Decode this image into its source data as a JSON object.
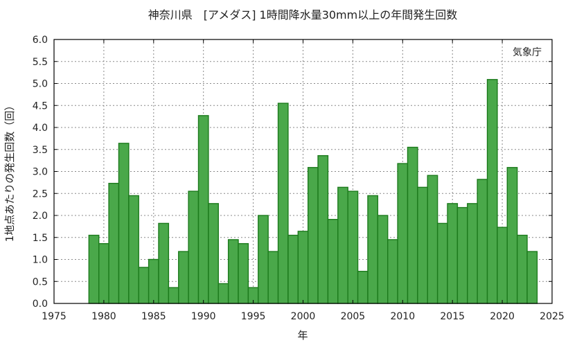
{
  "chart_data": {
    "type": "bar",
    "title": "神奈川県　[アメダス] 1時間降水量30mm以上の年間発生回数",
    "xlabel": "年",
    "ylabel": "1地点あたりの発生回数（回）",
    "annotation": "気象庁",
    "xlim": [
      1975,
      2025
    ],
    "ylim": [
      0,
      6
    ],
    "x_ticks": [
      1975,
      1980,
      1985,
      1990,
      1995,
      2000,
      2005,
      2010,
      2015,
      2020,
      2025
    ],
    "y_ticks": [
      "0.0",
      "0.5",
      "1.0",
      "1.5",
      "2.0",
      "2.5",
      "3.0",
      "3.5",
      "4.0",
      "4.5",
      "5.0",
      "5.5",
      "6.0"
    ],
    "grid": true,
    "bar_color": "#4aa84a",
    "bar_edge_color": "#1c7a1c",
    "categories": [
      1979,
      1980,
      1981,
      1982,
      1983,
      1984,
      1985,
      1986,
      1987,
      1988,
      1989,
      1990,
      1991,
      1992,
      1993,
      1994,
      1995,
      1996,
      1997,
      1998,
      1999,
      2000,
      2001,
      2002,
      2003,
      2004,
      2005,
      2006,
      2007,
      2008,
      2009,
      2010,
      2011,
      2012,
      2013,
      2014,
      2015,
      2016,
      2017,
      2018,
      2019,
      2020,
      2021,
      2022,
      2023
    ],
    "values": [
      1.55,
      1.36,
      2.73,
      3.64,
      2.45,
      0.82,
      1.0,
      1.82,
      0.36,
      1.18,
      2.55,
      4.27,
      2.27,
      0.45,
      1.45,
      1.36,
      0.36,
      2.0,
      1.18,
      4.55,
      1.55,
      1.64,
      3.09,
      3.36,
      1.91,
      2.64,
      2.55,
      0.73,
      2.45,
      2.0,
      1.45,
      3.18,
      3.55,
      2.64,
      2.91,
      1.82,
      2.27,
      2.18,
      2.27,
      2.82,
      5.09,
      1.73,
      3.09,
      1.55,
      1.18
    ]
  }
}
